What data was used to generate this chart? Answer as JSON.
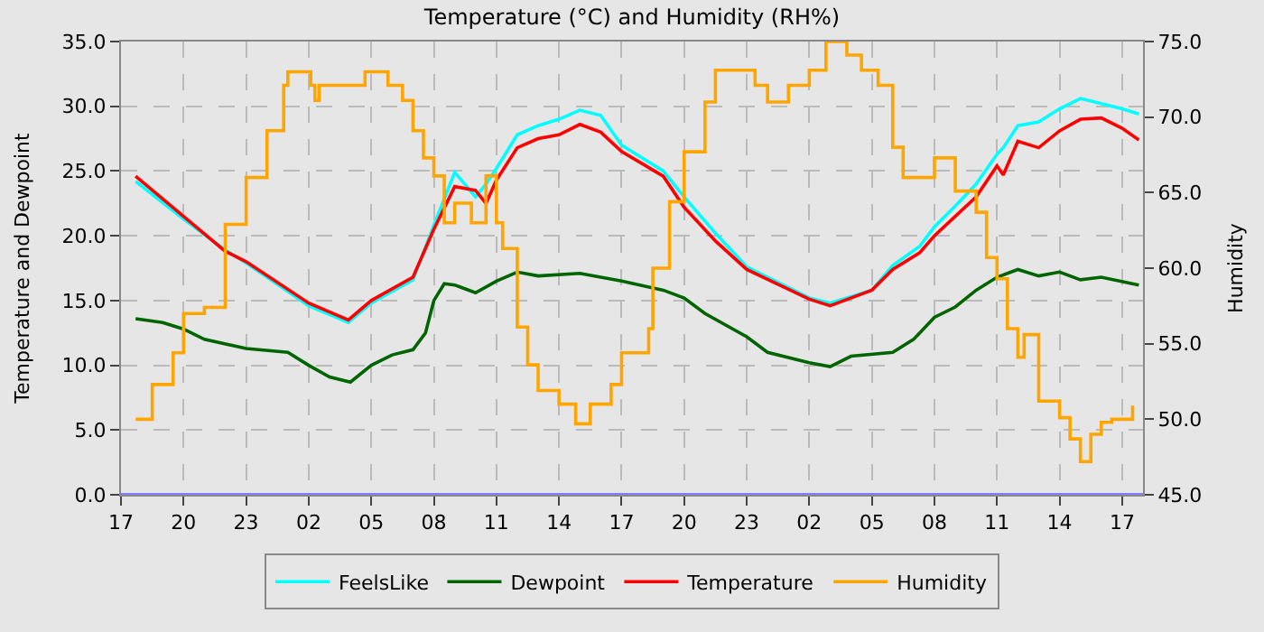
{
  "chart_data": {
    "type": "line",
    "title": "Temperature (°C) and Humidity (RH%)",
    "ylabel": "Temperature and Dewpoint",
    "y2label": "Humidity",
    "x": [
      "--01-01T17:42",
      "--01-01T20:00",
      "--01-01T22:00",
      "--01-01T23:00",
      "--01-02T02:00",
      "--01-02T03:54",
      "--01-02T05:00",
      "--01-02T07:00",
      "--01-02T08:00",
      "--01-02T09:00",
      "--01-02T10:00",
      "--01-02T10:30",
      "--01-02T11:00",
      "--01-02T12:00",
      "--01-02T13:00",
      "--01-02T14:00",
      "--01-02T15:00",
      "--01-02T16:00",
      "--01-02T17:00",
      "--01-02T19:00",
      "--01-02T20:00",
      "--01-02T21:30",
      "--01-02T23:00",
      "--01-03T02:00",
      "--01-03T03:00",
      "--01-03T05:00",
      "--01-03T06:00",
      "--01-03T07:18",
      "--01-03T08:00",
      "--01-03T09:00",
      "--01-03T10:00",
      "--01-03T11:00",
      "--01-03T11:18",
      "--01-03T12:00",
      "--01-03T13:00",
      "--01-03T14:00",
      "--01-03T15:00",
      "--01-03T16:00",
      "--01-03T17:00",
      "--01-03T17:48"
    ],
    "series": [
      {
        "name": "FeelsLike",
        "color": "#00ffff",
        "values": [
          24.2,
          21.3,
          18.9,
          17.9,
          14.6,
          13.3,
          14.8,
          16.6,
          20.8,
          24.9,
          23.0,
          24.0,
          25.2,
          27.8,
          28.5,
          29.0,
          29.7,
          29.3,
          27.0,
          25.0,
          23.0,
          20.2,
          17.6,
          15.2,
          14.8,
          15.8,
          17.7,
          19.2,
          20.7,
          22.3,
          24.0,
          26.3,
          26.8,
          28.5,
          28.8,
          29.8,
          30.6,
          30.2,
          29.8,
          29.4
        ]
      },
      {
        "name": "Dewpoint",
        "color": "#006400",
        "x": [
          "--01-01T17:42",
          "--01-01T19:00",
          "--01-01T20:00",
          "--01-01T21:00",
          "--01-01T23:00",
          "--01-02T01:00",
          "--01-02T02:00",
          "--01-02T03:00",
          "--01-02T04:00",
          "--01-02T05:00",
          "--01-02T06:00",
          "--01-02T07:00",
          "--01-02T07:36",
          "--01-02T08:00",
          "--01-02T08:30",
          "--01-02T09:00",
          "--01-02T10:00",
          "--01-02T11:00",
          "--01-02T12:00",
          "--01-02T13:00",
          "--01-02T15:00",
          "--01-02T17:00",
          "--01-02T19:00",
          "--01-02T20:00",
          "--01-02T21:00",
          "--01-02T23:00",
          "--01-03T00:00",
          "--01-03T02:00",
          "--01-03T03:00",
          "--01-03T04:00",
          "--01-03T06:00",
          "--01-03T07:00",
          "--01-03T08:00",
          "--01-03T09:00",
          "--01-03T10:00",
          "--01-03T11:00",
          "--01-03T12:00",
          "--01-03T13:00",
          "--01-03T14:00",
          "--01-03T15:00",
          "--01-03T16:00",
          "--01-03T17:48"
        ],
        "values": [
          13.6,
          13.3,
          12.8,
          12.0,
          11.3,
          11.0,
          10.0,
          9.1,
          8.7,
          10.0,
          10.8,
          11.2,
          12.5,
          15.0,
          16.3,
          16.2,
          15.6,
          16.5,
          17.2,
          16.9,
          17.1,
          16.5,
          15.8,
          15.2,
          14.0,
          12.2,
          11.0,
          10.2,
          9.9,
          10.7,
          11.0,
          12.0,
          13.7,
          14.5,
          15.8,
          16.8,
          17.4,
          16.9,
          17.2,
          16.6,
          16.8,
          16.2
        ]
      },
      {
        "name": "Temperature",
        "color": "#ff0000",
        "values": [
          24.6,
          21.5,
          18.8,
          18.0,
          14.8,
          13.5,
          15.0,
          16.8,
          20.5,
          23.8,
          23.5,
          22.5,
          24.3,
          26.8,
          27.5,
          27.8,
          28.6,
          28.0,
          26.5,
          24.6,
          22.2,
          19.6,
          17.4,
          15.1,
          14.6,
          15.8,
          17.4,
          18.7,
          20.0,
          21.5,
          23.0,
          25.4,
          24.7,
          27.3,
          26.8,
          28.1,
          29.0,
          29.1,
          28.3,
          27.4
        ]
      },
      {
        "name": "Humidity",
        "color": "#ffa500",
        "type": "step",
        "axis": "y2",
        "x": [
          "--01-01T17:42",
          "--01-01T18:30",
          "--01-01T19:30",
          "--01-01T20:00",
          "--01-01T21:00",
          "--01-01T22:00",
          "--01-01T23:00",
          "--01-02T00:00",
          "--01-02T00:48",
          "--01-02T01:00",
          "--01-02T02:06",
          "--01-02T02:18",
          "--01-02T02:30",
          "--01-02T04:30",
          "--01-02T04:42",
          "--01-02T05:36",
          "--01-02T05:48",
          "--01-02T06:30",
          "--01-02T07:00",
          "--01-02T07:30",
          "--01-02T08:00",
          "--01-02T08:30",
          "--01-02T09:00",
          "--01-02T09:48",
          "--01-02T10:30",
          "--01-02T11:00",
          "--01-02T11:18",
          "--01-02T12:00",
          "--01-02T12:30",
          "--01-02T13:00",
          "--01-02T14:00",
          "--01-02T14:48",
          "--01-02T15:30",
          "--01-02T16:30",
          "--01-02T17:00",
          "--01-02T18:18",
          "--01-02T18:30",
          "--01-02T19:18",
          "--01-02T20:00",
          "--01-02T21:00",
          "--01-02T21:30",
          "--01-02T22:30",
          "--01-02T23:24",
          "--01-03T00:00",
          "--01-03T01:00",
          "--01-03T02:00",
          "--01-03T02:48",
          "--01-03T03:48",
          "--01-03T04:30",
          "--01-03T05:18",
          "--01-03T06:00",
          "--01-03T06:30",
          "--01-03T07:30",
          "--01-03T08:00",
          "--01-03T09:00",
          "--01-03T10:00",
          "--01-03T10:30",
          "--01-03T11:00",
          "--01-03T11:30",
          "--01-03T12:00",
          "--01-03T12:18",
          "--01-03T13:00",
          "--01-03T14:00",
          "--01-03T14:30",
          "--01-03T15:00",
          "--01-03T15:30",
          "--01-03T16:00",
          "--01-03T16:30",
          "--01-03T17:30"
        ],
        "values": [
          50.0,
          52.3,
          54.4,
          57.0,
          57.4,
          62.9,
          66.0,
          69.1,
          72.1,
          73.0,
          72.1,
          71.1,
          72.1,
          72.1,
          73.0,
          73.0,
          72.1,
          71.1,
          69.1,
          67.3,
          66.1,
          63.0,
          64.3,
          63.0,
          66.1,
          63.0,
          61.3,
          56.1,
          53.6,
          51.9,
          51.0,
          49.7,
          51.0,
          52.3,
          54.4,
          56.0,
          60.0,
          64.4,
          67.7,
          71.0,
          73.1,
          73.1,
          72.1,
          71.0,
          72.1,
          73.1,
          75.0,
          74.1,
          73.1,
          72.1,
          68.0,
          66.0,
          66.0,
          67.3,
          65.1,
          63.7,
          60.7,
          59.3,
          56.0,
          54.1,
          55.6,
          51.2,
          50.1,
          48.7,
          47.2,
          49.0,
          49.8,
          50.0,
          50.9
        ]
      }
    ],
    "xlim": [
      "--01-01T17:00",
      "--01-03T18:00"
    ],
    "xticks": [
      {
        "value": "--01-01T17:00",
        "label": "17"
      },
      {
        "value": "--01-01T20:00",
        "label": "20"
      },
      {
        "value": "--01-01T23:00",
        "label": "23"
      },
      {
        "value": "--01-02T02:00",
        "label": "02"
      },
      {
        "value": "--01-02T05:00",
        "label": "05"
      },
      {
        "value": "--01-02T08:00",
        "label": "08"
      },
      {
        "value": "--01-02T11:00",
        "label": "11"
      },
      {
        "value": "--01-02T14:00",
        "label": "14"
      },
      {
        "value": "--01-02T17:00",
        "label": "17"
      },
      {
        "value": "--01-02T20:00",
        "label": "20"
      },
      {
        "value": "--01-02T23:00",
        "label": "23"
      },
      {
        "value": "--01-03T02:00",
        "label": "02"
      },
      {
        "value": "--01-03T05:00",
        "label": "05"
      },
      {
        "value": "--01-03T08:00",
        "label": "08"
      },
      {
        "value": "--01-03T11:00",
        "label": "11"
      },
      {
        "value": "--01-03T14:00",
        "label": "14"
      },
      {
        "value": "--01-03T17:00",
        "label": "17"
      }
    ],
    "ylim": [
      0,
      35
    ],
    "yticks": [
      {
        "value": 0,
        "label": "0.0"
      },
      {
        "value": 5,
        "label": "5.0"
      },
      {
        "value": 10,
        "label": "10.0"
      },
      {
        "value": 15,
        "label": "15.0"
      },
      {
        "value": 20,
        "label": "20.0"
      },
      {
        "value": 25,
        "label": "25.0"
      },
      {
        "value": 30,
        "label": "30.0"
      },
      {
        "value": 35,
        "label": "35.0"
      }
    ],
    "y2lim": [
      45,
      75
    ],
    "y2ticks": [
      {
        "value": 45,
        "label": "45.0"
      },
      {
        "value": 50,
        "label": "50.0"
      },
      {
        "value": 55,
        "label": "55.0"
      },
      {
        "value": 60,
        "label": "60.0"
      },
      {
        "value": 65,
        "label": "65.0"
      },
      {
        "value": 70,
        "label": "70.0"
      },
      {
        "value": 75,
        "label": "75.0"
      }
    ],
    "ref_lines": [
      {
        "axis": "y",
        "value": 0,
        "color": "#7f7fff"
      }
    ],
    "grid": true,
    "legend": "bottom"
  }
}
